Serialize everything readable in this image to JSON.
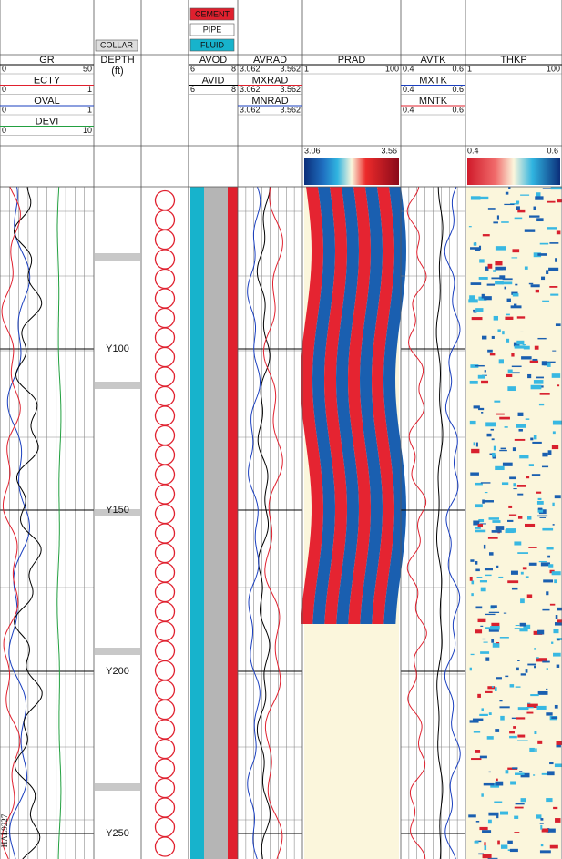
{
  "legend": [
    "CEMENT",
    "PIPE",
    "FLUID"
  ],
  "collar": "COLLAR",
  "tracks": [
    {
      "curves": [
        {
          "name": "GR",
          "min": 0,
          "max": 50
        },
        {
          "name": "ECTY",
          "min": 0,
          "max": 1
        },
        {
          "name": "OVAL",
          "min": 0,
          "max": 1
        },
        {
          "name": "DEVI",
          "min": 0,
          "max": 10
        }
      ]
    },
    {
      "name": "DEPTH",
      "unit": "(ft)"
    },
    {
      "curves": [
        {
          "name": "AVOD",
          "min": 6,
          "max": 8
        },
        {
          "name": "AVID",
          "min": 6,
          "max": 8
        }
      ]
    },
    {
      "curves": [
        {
          "name": "AVRAD",
          "min": 3.062,
          "max": 3.562
        },
        {
          "name": "MXRAD",
          "min": 3.062,
          "max": 3.562
        },
        {
          "name": "MNRAD",
          "min": 3.062,
          "max": 3.562
        }
      ]
    },
    {
      "curves": [
        {
          "name": "PRAD",
          "min": 1,
          "max": 100
        }
      ],
      "colorbar": [
        3.06,
        3.56
      ]
    },
    {
      "curves": [
        {
          "name": "AVTK",
          "min": 0.4,
          "max": 0.6
        },
        {
          "name": "MXTK",
          "min": 0.4,
          "max": 0.6
        },
        {
          "name": "MNTK",
          "min": 0.4,
          "max": 0.6
        }
      ]
    },
    {
      "curves": [
        {
          "name": "THKP",
          "min": 1,
          "max": 100
        }
      ],
      "colorbar": [
        0.4,
        0.6
      ]
    }
  ],
  "depths": [
    "Y100",
    "Y150",
    "Y200",
    "Y250"
  ],
  "figure_id": "HAL9227"
}
